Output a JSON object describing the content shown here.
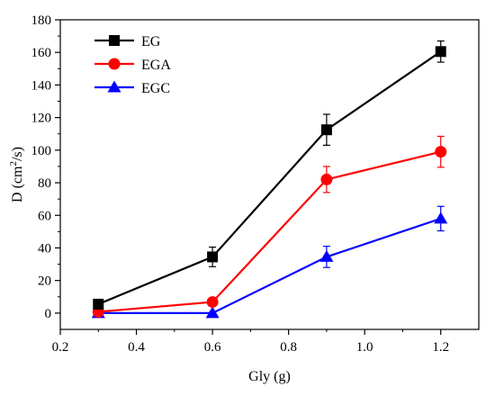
{
  "chart_data": {
    "type": "line",
    "xlabel": "Gly (g)",
    "ylabel": "D (cm²/s)",
    "ylabel_parts": {
      "prefix": "D (cm",
      "sup": "2",
      "suffix": "/s)"
    },
    "xlim": [
      0.2,
      1.3
    ],
    "ylim": [
      -10,
      180
    ],
    "x_ticks": [
      "0.2",
      "0.4",
      "0.6",
      "0.8",
      "1.0",
      "1.2"
    ],
    "y_ticks": [
      "0",
      "20",
      "40",
      "60",
      "80",
      "100",
      "120",
      "140",
      "160",
      "180"
    ],
    "x": [
      0.3,
      0.6,
      0.9,
      1.2
    ],
    "legend_position": "top-left",
    "series": [
      {
        "name": "EG",
        "color": "#000000",
        "marker": "square",
        "values": [
          5.5,
          34.5,
          112.5,
          160.5
        ],
        "errors": [
          2.5,
          6,
          9.5,
          6.5
        ]
      },
      {
        "name": "EGA",
        "color": "#ff0000",
        "marker": "circle",
        "values": [
          0.8,
          6.8,
          82,
          99
        ],
        "errors": [
          0.5,
          1.5,
          8,
          9.5
        ]
      },
      {
        "name": "EGC",
        "color": "#0000ff",
        "marker": "triangle",
        "values": [
          0,
          0,
          34.5,
          58
        ],
        "errors": [
          0.5,
          0.5,
          6.5,
          7.5
        ]
      }
    ]
  }
}
